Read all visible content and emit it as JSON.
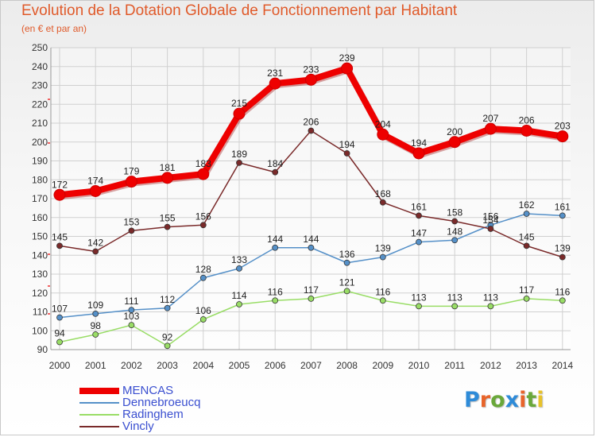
{
  "title": "Evolution de la Dotation Globale de Fonctionnement par Habitant",
  "subtitle": "(en € et par an)",
  "logo": {
    "text": "Proxiti",
    "colors": [
      "#2e8bd8",
      "#e8642a",
      "#6aa83a",
      "#2e8bd8",
      "#e8642a",
      "#6aa83a",
      "#e8c22a"
    ]
  },
  "chart_data": {
    "type": "line",
    "x": [
      "2000",
      "2001",
      "2002",
      "2003",
      "2004",
      "2005",
      "2006",
      "2007",
      "2008",
      "2009",
      "2010",
      "2011",
      "2012",
      "2013",
      "2014"
    ],
    "ylim": [
      90,
      250
    ],
    "yticks": [
      90,
      100,
      110,
      120,
      130,
      140,
      150,
      160,
      170,
      180,
      190,
      200,
      210,
      220,
      230,
      240,
      250
    ],
    "grid": true,
    "legend_position": "bottom-left",
    "series": [
      {
        "name": "MENCAS",
        "color": "#ee0000",
        "values": [
          172,
          174,
          179,
          181,
          183,
          215,
          231,
          233,
          239,
          204,
          194,
          200,
          207,
          206,
          203
        ]
      },
      {
        "name": "Dennebroeucq",
        "color": "#5590c8",
        "values": [
          107,
          109,
          111,
          112,
          128,
          133,
          144,
          144,
          136,
          139,
          147,
          148,
          156,
          162,
          161
        ]
      },
      {
        "name": "Radinghem",
        "color": "#99dd66",
        "values": [
          94,
          98,
          103,
          92,
          106,
          114,
          116,
          117,
          121,
          116,
          113,
          113,
          113,
          117,
          116
        ]
      },
      {
        "name": "Vincly",
        "color": "#7a2a2a",
        "values": [
          145,
          142,
          153,
          155,
          156,
          189,
          184,
          206,
          194,
          168,
          161,
          158,
          154,
          145,
          139
        ]
      }
    ]
  }
}
